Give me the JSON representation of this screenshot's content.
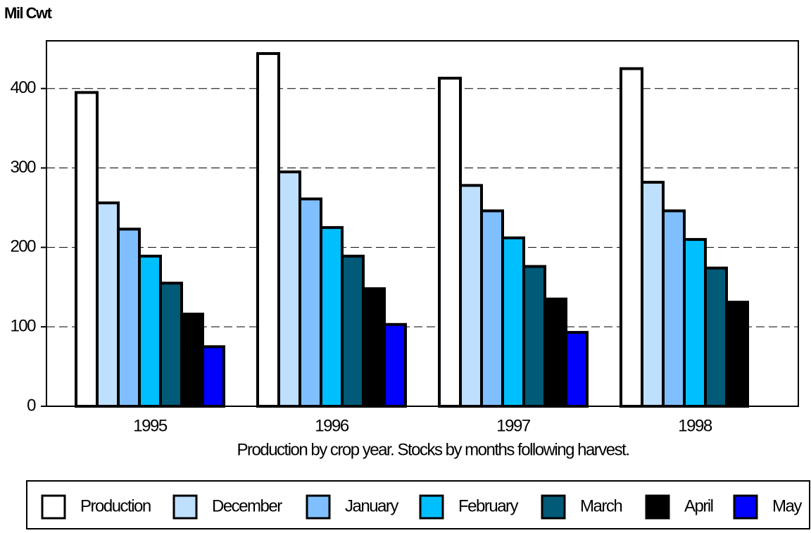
{
  "chart_data": {
    "type": "bar",
    "y_label": "Mil Cwt",
    "caption": "Production by crop year.  Stocks by months following harvest.",
    "categories": [
      "1995",
      "1996",
      "1997",
      "1998"
    ],
    "series": [
      {
        "name": "Production",
        "color": "#ffffff",
        "values": [
          395,
          444,
          413,
          425
        ]
      },
      {
        "name": "December",
        "color": "#bfdfff",
        "values": [
          256,
          295,
          278,
          282
        ]
      },
      {
        "name": "January",
        "color": "#80bfff",
        "values": [
          223,
          261,
          246,
          246
        ]
      },
      {
        "name": "February",
        "color": "#00bfff",
        "values": [
          189,
          225,
          212,
          210
        ]
      },
      {
        "name": "March",
        "color": "#005a78",
        "values": [
          155,
          189,
          176,
          174
        ]
      },
      {
        "name": "April",
        "color": "#000000",
        "values": [
          116,
          148,
          135,
          131
        ]
      },
      {
        "name": "May",
        "color": "#0000ff",
        "values": [
          75,
          103,
          93,
          null
        ]
      }
    ],
    "ylim": [
      0,
      460
    ],
    "yticks": [
      0,
      100,
      200,
      300,
      400
    ],
    "grid": true,
    "legend": "bottom"
  }
}
